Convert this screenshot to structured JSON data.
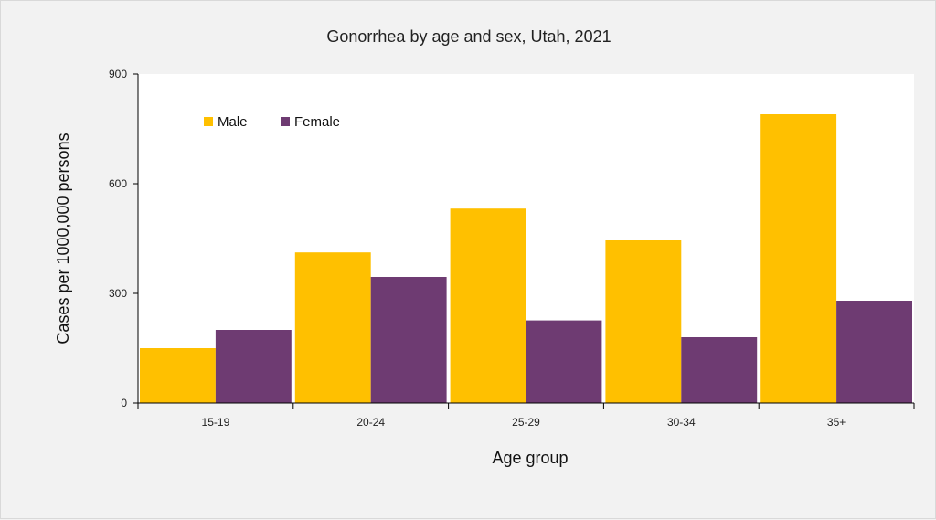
{
  "chart_data": {
    "type": "bar",
    "title": "Gonorrhea by age and sex, Utah, 2021",
    "xlabel": "Age group",
    "ylabel": "Cases per 1000,000 persons",
    "categories": [
      "15-19",
      "20-24",
      "25-29",
      "30-34",
      "35+"
    ],
    "series": [
      {
        "name": "Male",
        "color": "#FFC000",
        "values": [
          150,
          412,
          532,
          445,
          790
        ]
      },
      {
        "name": "Female",
        "color": "#6E3B72",
        "values": [
          200,
          345,
          226,
          180,
          280
        ]
      }
    ],
    "ylim": [
      0,
      900
    ],
    "yticks": [
      0,
      300,
      600,
      900
    ],
    "legend_position": "top-left",
    "grid": false,
    "plot_background": "#ffffff",
    "chart_background": "#f2f2f2"
  }
}
